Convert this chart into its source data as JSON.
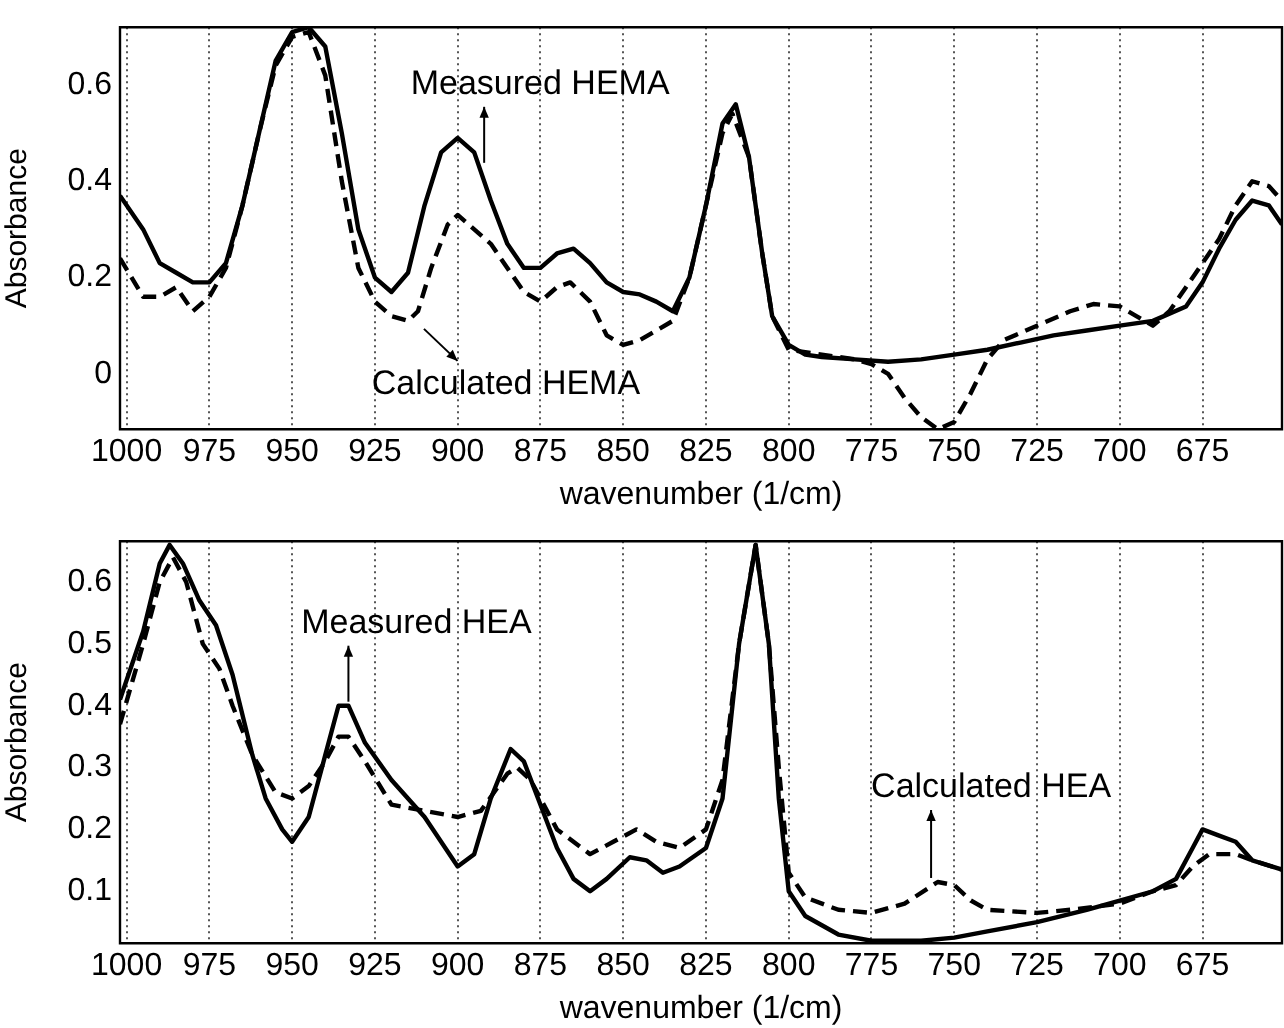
{
  "chart_data": [
    {
      "type": "line",
      "xlabel": "wavenumber (1/cm)",
      "ylabel": "Absorbance",
      "xlim": [
        1002,
        651
      ],
      "ylim": [
        -0.115,
        0.72
      ],
      "xticks": [
        1000,
        975,
        950,
        925,
        900,
        875,
        850,
        825,
        800,
        775,
        750,
        725,
        700,
        675
      ],
      "yticks": [
        0,
        0.2,
        0.4,
        0.6
      ],
      "grid": "x",
      "legend": false,
      "marker": "none",
      "annotations": [
        {
          "text": "Measured HEMA",
          "x": 892,
          "y": 0.43
        },
        {
          "text": "Calculated HEMA",
          "x": 912,
          "y": 0.11
        }
      ],
      "series": [
        {
          "color": "#000000",
          "line_style": "solid",
          "x": [
            1002,
            995,
            990,
            985,
            980,
            975,
            970,
            965,
            960,
            955,
            950,
            945,
            940,
            935,
            930,
            925,
            920,
            915,
            910,
            905,
            900,
            895,
            890,
            885,
            880,
            875,
            870,
            865,
            860,
            855,
            850,
            845,
            840,
            835,
            830,
            825,
            820,
            816,
            812,
            808,
            805,
            800,
            795,
            790,
            780,
            770,
            760,
            750,
            740,
            730,
            720,
            710,
            700,
            690,
            680,
            675,
            670,
            665,
            660,
            655,
            651
          ],
          "values": [
            0.37,
            0.3,
            0.23,
            0.21,
            0.19,
            0.19,
            0.23,
            0.35,
            0.5,
            0.65,
            0.71,
            0.72,
            0.68,
            0.5,
            0.3,
            0.2,
            0.17,
            0.21,
            0.35,
            0.46,
            0.49,
            0.46,
            0.36,
            0.27,
            0.22,
            0.22,
            0.25,
            0.26,
            0.23,
            0.19,
            0.17,
            0.165,
            0.15,
            0.13,
            0.2,
            0.35,
            0.52,
            0.56,
            0.45,
            0.25,
            0.12,
            0.06,
            0.04,
            0.035,
            0.03,
            0.025,
            0.03,
            0.04,
            0.05,
            0.065,
            0.08,
            0.09,
            0.1,
            0.11,
            0.14,
            0.19,
            0.26,
            0.32,
            0.36,
            0.35,
            0.31
          ]
        },
        {
          "color": "#000000",
          "line_style": "dashed",
          "x": [
            1002,
            995,
            990,
            985,
            980,
            975,
            970,
            965,
            960,
            955,
            950,
            945,
            940,
            935,
            930,
            925,
            920,
            915,
            912,
            908,
            903,
            900,
            895,
            890,
            885,
            880,
            875,
            870,
            866,
            860,
            855,
            850,
            845,
            840,
            835,
            830,
            825,
            820,
            817,
            812,
            808,
            805,
            800,
            790,
            780,
            775,
            770,
            765,
            760,
            755,
            750,
            745,
            740,
            735,
            725,
            715,
            708,
            700,
            695,
            690,
            685,
            680,
            675,
            670,
            665,
            660,
            655,
            651
          ],
          "values": [
            0.24,
            0.16,
            0.16,
            0.18,
            0.13,
            0.16,
            0.22,
            0.35,
            0.5,
            0.64,
            0.7,
            0.71,
            0.62,
            0.4,
            0.22,
            0.15,
            0.12,
            0.11,
            0.13,
            0.22,
            0.31,
            0.33,
            0.3,
            0.27,
            0.22,
            0.17,
            0.15,
            0.18,
            0.19,
            0.15,
            0.08,
            0.06,
            0.07,
            0.09,
            0.11,
            0.2,
            0.35,
            0.5,
            0.54,
            0.45,
            0.25,
            0.12,
            0.05,
            0.04,
            0.03,
            0.02,
            0.0,
            -0.05,
            -0.09,
            -0.115,
            -0.1,
            -0.04,
            0.03,
            0.07,
            0.1,
            0.13,
            0.145,
            0.14,
            0.12,
            0.1,
            0.13,
            0.18,
            0.23,
            0.28,
            0.35,
            0.4,
            0.39,
            0.36
          ]
        }
      ]
    },
    {
      "type": "line",
      "xlabel": "wavenumber (1/cm)",
      "ylabel": "Absorbance",
      "xlim": [
        1002,
        651
      ],
      "ylim": [
        0.016,
        0.666
      ],
      "xticks": [
        1000,
        975,
        950,
        925,
        900,
        875,
        850,
        825,
        800,
        775,
        750,
        725,
        700,
        675
      ],
      "yticks": [
        0.1,
        0.2,
        0.3,
        0.4,
        0.5,
        0.6
      ],
      "grid": "x",
      "legend": false,
      "marker": "none",
      "annotations": [
        {
          "text": "Measured HEA",
          "x": 933,
          "y": 0.4
        },
        {
          "text": "Calculated HEA",
          "x": 757,
          "y": 0.115
        }
      ],
      "series": [
        {
          "color": "#000000",
          "line_style": "solid",
          "x": [
            1002,
            995,
            990,
            987,
            983,
            978,
            973,
            968,
            962,
            958,
            953,
            950,
            945,
            940,
            936,
            933,
            928,
            920,
            910,
            900,
            895,
            890,
            884,
            880,
            875,
            870,
            865,
            860,
            855,
            848,
            843,
            838,
            833,
            825,
            820,
            815,
            810,
            806,
            803,
            800,
            795,
            785,
            775,
            760,
            750,
            740,
            725,
            710,
            700,
            690,
            683,
            678,
            675,
            670,
            665,
            660,
            651
          ],
          "values": [
            0.41,
            0.52,
            0.63,
            0.66,
            0.63,
            0.57,
            0.53,
            0.45,
            0.32,
            0.25,
            0.2,
            0.18,
            0.22,
            0.32,
            0.4,
            0.4,
            0.34,
            0.28,
            0.22,
            0.14,
            0.16,
            0.25,
            0.33,
            0.31,
            0.24,
            0.17,
            0.12,
            0.1,
            0.12,
            0.155,
            0.15,
            0.13,
            0.14,
            0.17,
            0.25,
            0.5,
            0.66,
            0.5,
            0.25,
            0.1,
            0.06,
            0.03,
            0.02,
            0.02,
            0.025,
            0.035,
            0.05,
            0.07,
            0.085,
            0.1,
            0.12,
            0.17,
            0.2,
            0.19,
            0.18,
            0.15,
            0.135
          ]
        },
        {
          "color": "#000000",
          "line_style": "dashed",
          "x": [
            1002,
            995,
            990,
            986,
            982,
            977,
            972,
            968,
            962,
            955,
            950,
            945,
            940,
            936,
            933,
            928,
            920,
            910,
            900,
            893,
            885,
            882,
            878,
            870,
            860,
            853,
            846,
            840,
            833,
            825,
            820,
            815,
            810,
            806,
            803,
            800,
            795,
            785,
            775,
            765,
            755,
            750,
            745,
            740,
            725,
            715,
            700,
            690,
            683,
            678,
            673,
            665,
            660,
            651
          ],
          "values": [
            0.37,
            0.5,
            0.6,
            0.64,
            0.6,
            0.5,
            0.46,
            0.4,
            0.32,
            0.26,
            0.25,
            0.27,
            0.31,
            0.35,
            0.35,
            0.31,
            0.24,
            0.23,
            0.22,
            0.23,
            0.29,
            0.3,
            0.28,
            0.2,
            0.16,
            0.18,
            0.2,
            0.18,
            0.17,
            0.2,
            0.28,
            0.5,
            0.66,
            0.5,
            0.3,
            0.13,
            0.09,
            0.07,
            0.065,
            0.08,
            0.115,
            0.11,
            0.085,
            0.07,
            0.065,
            0.07,
            0.08,
            0.1,
            0.11,
            0.14,
            0.16,
            0.16,
            0.15,
            0.135
          ]
        }
      ]
    }
  ]
}
